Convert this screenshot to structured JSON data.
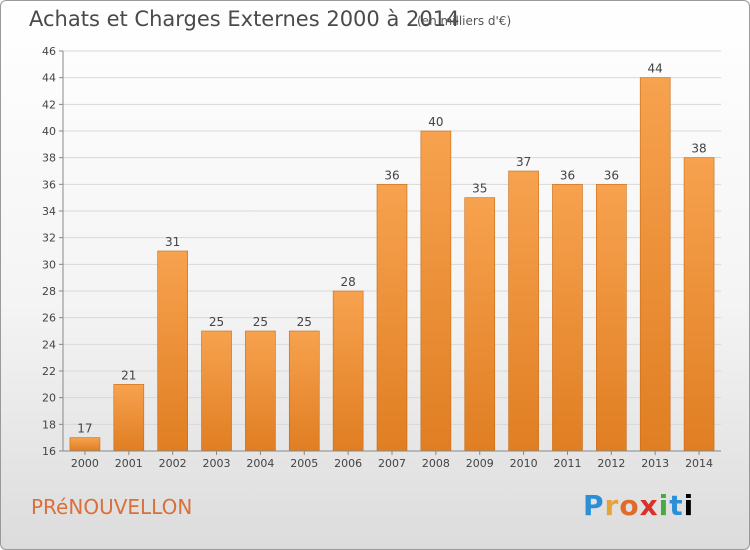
{
  "header": {
    "title": "Achats et Charges Externes 2000 à 2014",
    "subtitle": "(en milliers d'€)"
  },
  "footer": {
    "commune": "PRéNOUVELLON",
    "logo_letters": [
      "P",
      "r",
      "o",
      "x",
      "i",
      "t",
      "i"
    ]
  },
  "colors": {
    "bar_light": "#f7a24f",
    "bar_dark": "#e07e22",
    "bar_edge": "#c86a14",
    "commune": "#d9703a"
  },
  "chart_data": {
    "type": "bar",
    "title": "Achats et Charges Externes 2000 à 2014",
    "subtitle": "(en milliers d'€)",
    "categories": [
      "2000",
      "2001",
      "2002",
      "2003",
      "2004",
      "2005",
      "2006",
      "2007",
      "2008",
      "2009",
      "2010",
      "2011",
      "2012",
      "2013",
      "2014"
    ],
    "values": [
      17,
      21,
      31,
      25,
      25,
      25,
      28,
      36,
      40,
      35,
      37,
      36,
      36,
      44,
      38
    ],
    "ylim": [
      16,
      46
    ],
    "yticks": [
      16,
      18,
      20,
      22,
      24,
      26,
      28,
      30,
      32,
      34,
      36,
      38,
      40,
      42,
      44,
      46
    ],
    "grid": true,
    "legend": "none",
    "data_labels": true
  }
}
